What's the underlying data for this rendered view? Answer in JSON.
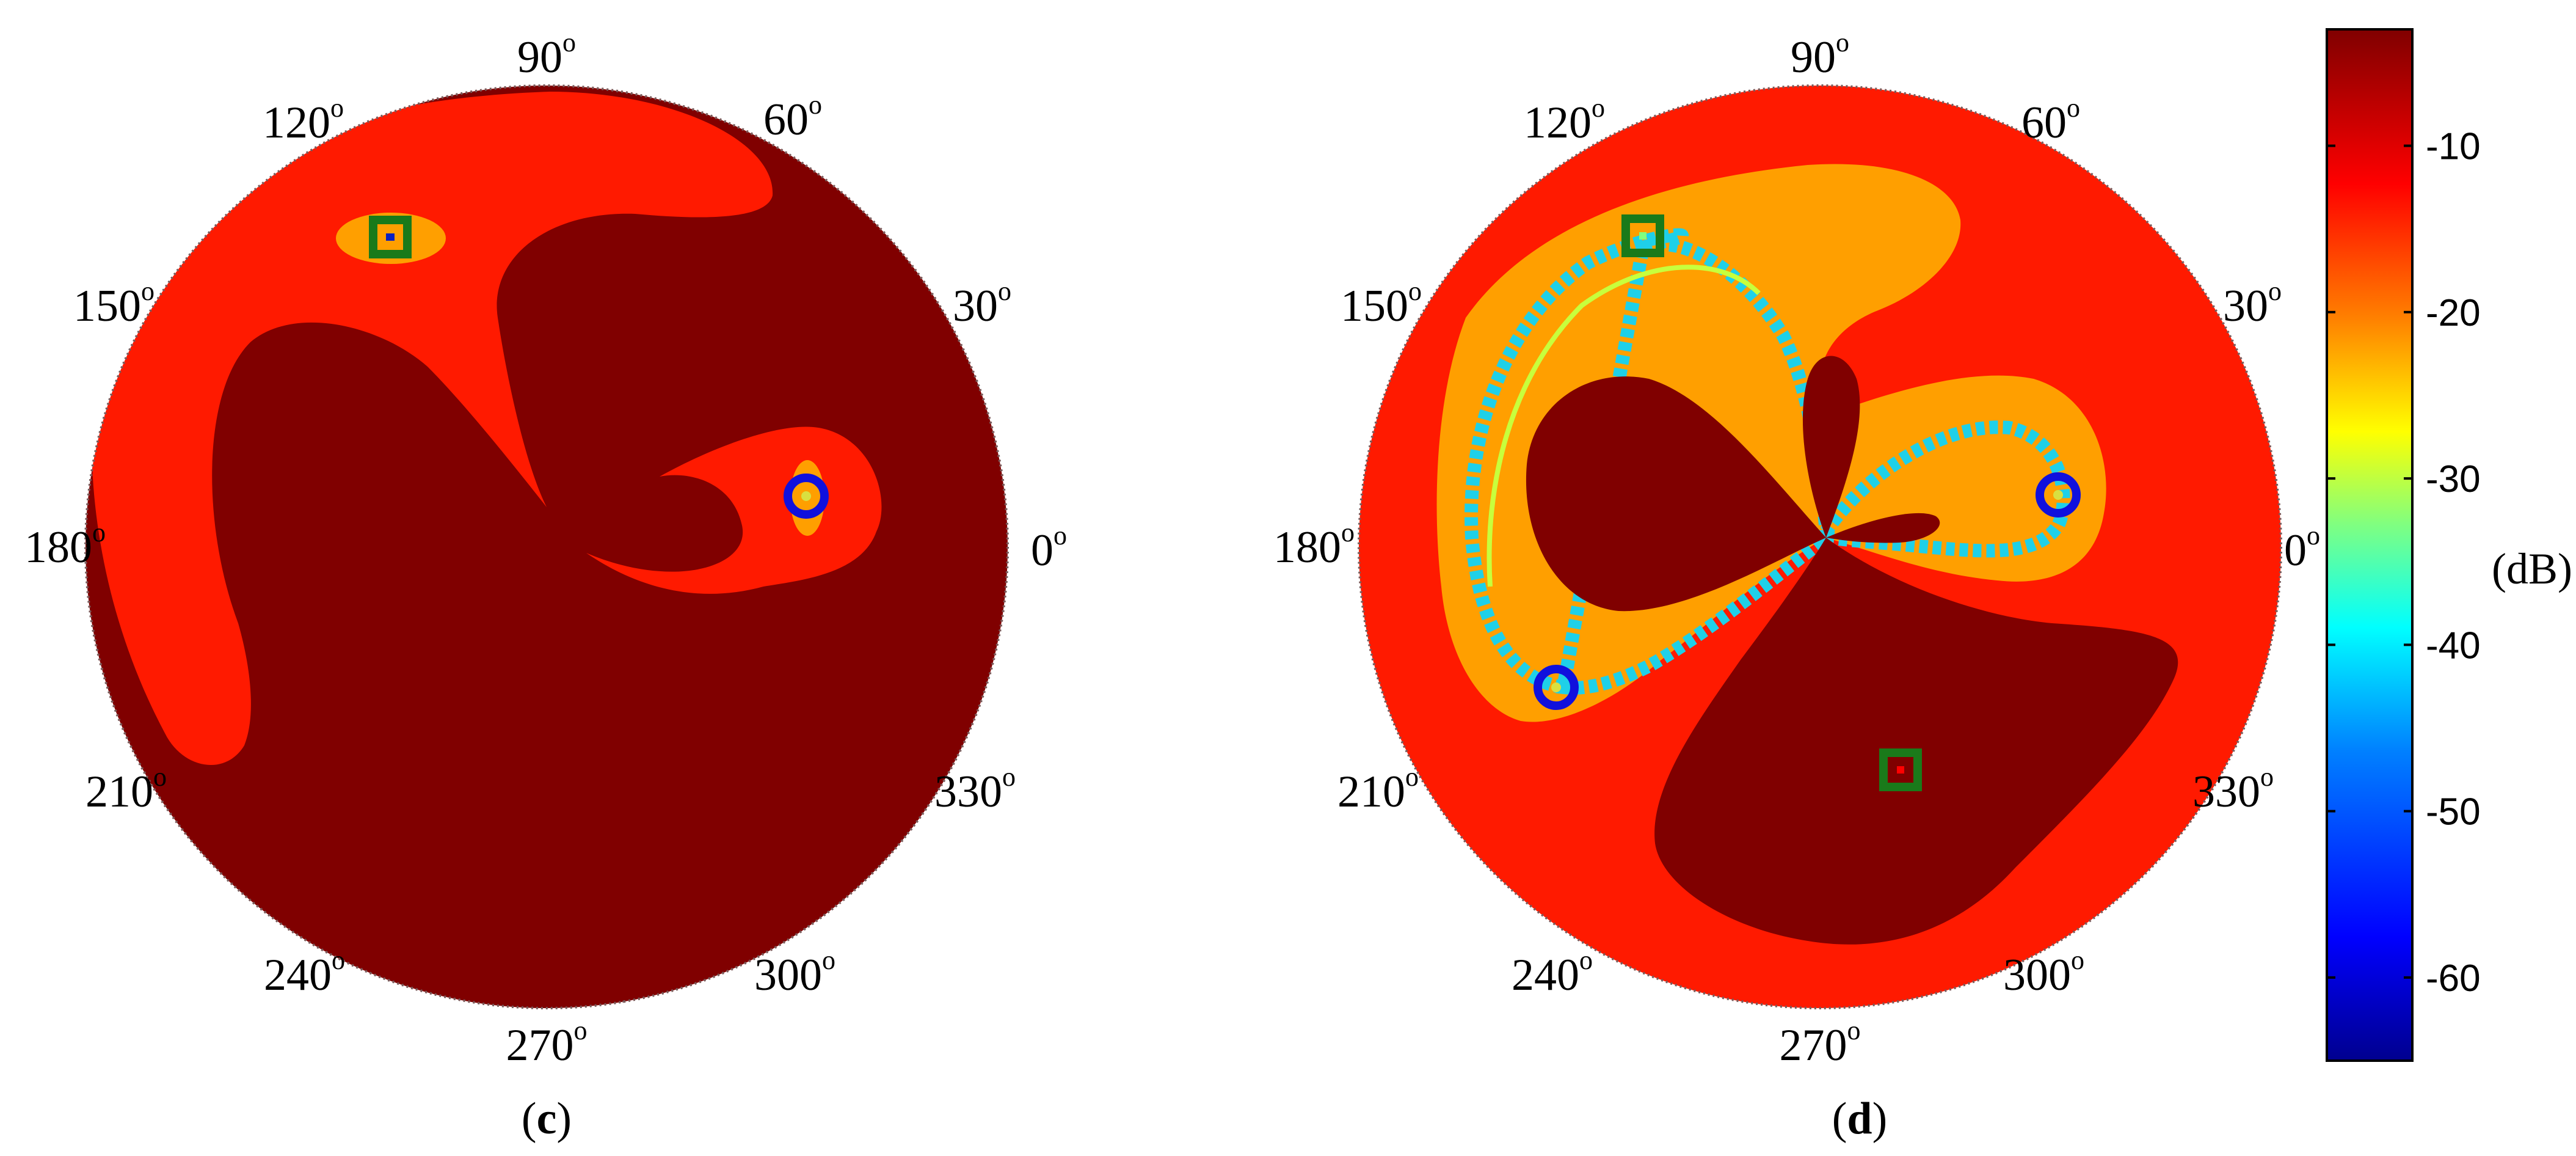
{
  "chart_data": [
    {
      "type": "polar_heatmap",
      "panel_label": "c",
      "angle_labels": [
        "0",
        "30",
        "60",
        "90",
        "120",
        "150",
        "180",
        "210",
        "240",
        "270",
        "300",
        "330"
      ],
      "angle_unit": "o",
      "value_range_db": [
        -65,
        -3
      ],
      "regions": [
        {
          "name": "background",
          "level_db": -3
        },
        {
          "name": "upper-left sidelobe",
          "level_db": -10
        },
        {
          "name": "right lobe",
          "level_db": -10
        },
        {
          "name": "upper-left null",
          "level_db": -20
        },
        {
          "name": "right null",
          "level_db": -20
        }
      ],
      "markers": [
        {
          "kind": "circle",
          "color": "#1010dd",
          "angle_deg": 0
        },
        {
          "kind": "square",
          "color": "#1a7a1a",
          "angle_deg": 128
        }
      ]
    },
    {
      "type": "polar_heatmap",
      "panel_label": "d",
      "angle_labels": [
        "0",
        "30",
        "60",
        "90",
        "120",
        "150",
        "180",
        "210",
        "240",
        "270",
        "300",
        "330"
      ],
      "angle_unit": "o",
      "value_range_db": [
        -65,
        -3
      ],
      "regions": [
        {
          "name": "background",
          "level_db": -10
        },
        {
          "name": "left lobe",
          "level_db": -3
        },
        {
          "name": "upper lobe",
          "level_db": -3
        },
        {
          "name": "lower-right lobe",
          "level_db": -3
        },
        {
          "name": "null ring",
          "level_db": -50
        }
      ],
      "markers": [
        {
          "kind": "circle",
          "color": "#1010dd",
          "angle_deg": 0
        },
        {
          "kind": "circle",
          "color": "#1010dd",
          "angle_deg": 210
        },
        {
          "kind": "square",
          "color": "#1a7a1a",
          "angle_deg": 115
        },
        {
          "kind": "square",
          "color": "#1a7a1a",
          "angle_deg": 290
        }
      ]
    }
  ],
  "colorbar": {
    "ticks": [
      -10,
      -20,
      -30,
      -40,
      -50,
      -60
    ],
    "range": [
      -65,
      -3
    ],
    "unit_label": "(dB)",
    "colors": [
      "#00008f",
      "#0000ff",
      "#0080ff",
      "#00ffff",
      "#80ff80",
      "#ffff00",
      "#ff8000",
      "#ff0000",
      "#800000"
    ]
  },
  "colors": {
    "deep_red": "#800000",
    "red": "#ff1a00",
    "orange": "#ff9f00",
    "marker_blue": "#1010dd",
    "marker_green": "#1a7a1a"
  }
}
